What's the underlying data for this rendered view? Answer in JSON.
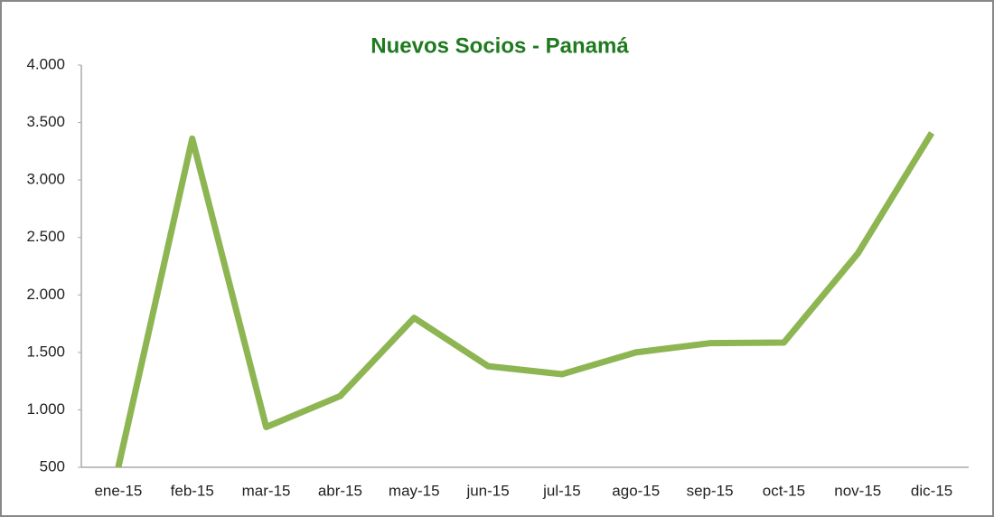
{
  "chart_data": {
    "type": "line",
    "title": "Nuevos Socios - Panamá",
    "categories": [
      "ene-15",
      "feb-15",
      "mar-15",
      "abr-15",
      "may-15",
      "jun-15",
      "jul-15",
      "ago-15",
      "sep-15",
      "oct-15",
      "nov-15",
      "dic-15"
    ],
    "series": [
      {
        "name": "Nuevos Socios",
        "color": "#8db552",
        "values": [
          500,
          3360,
          850,
          1120,
          1800,
          1380,
          1310,
          1500,
          1580,
          1585,
          2360,
          3410
        ]
      }
    ],
    "ylim": [
      500,
      4000
    ],
    "yticks": [
      500,
      {
        "value": 1000,
        "label": "1.000"
      },
      {
        "value": 1500,
        "label": "1.500"
      },
      {
        "value": 2000,
        "label": "2.000"
      },
      {
        "value": 2500,
        "label": "2.500"
      },
      {
        "value": 3000,
        "label": "3.000"
      },
      {
        "value": 3500,
        "label": "3.500"
      },
      {
        "value": 4000,
        "label": "4.000"
      }
    ],
    "grid": false
  }
}
